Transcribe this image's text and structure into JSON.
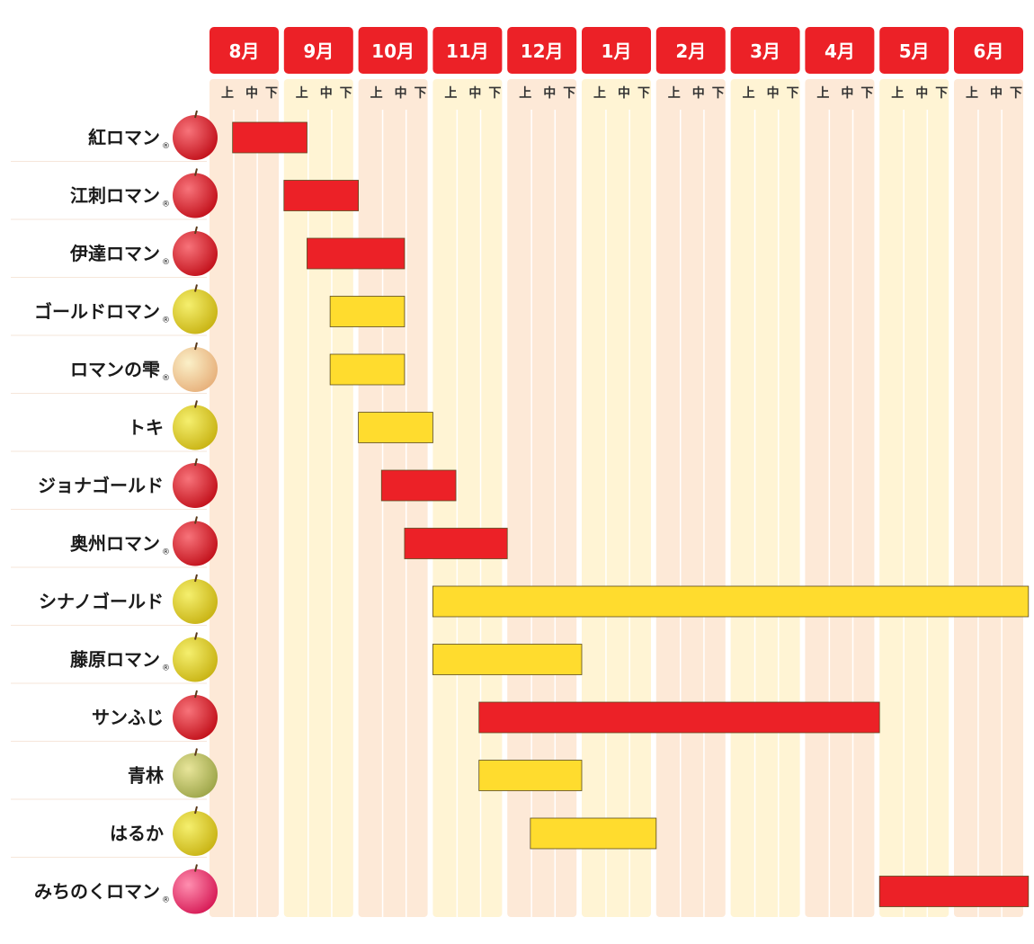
{
  "chart_data": {
    "type": "gantt",
    "months": [
      "8月",
      "9月",
      "10月",
      "11月",
      "12月",
      "1月",
      "2月",
      "3月",
      "4月",
      "5月",
      "6月"
    ],
    "periods": [
      "上",
      "中",
      "下"
    ],
    "colors": {
      "red": "#ec2127",
      "yellow": "#ffdc2e",
      "column_odd": "#fde9d7",
      "column_even": "#fff4d4",
      "month_header": "#ec2127"
    },
    "varieties": [
      {
        "name": "紅ロマン",
        "registered": true,
        "apple": "red",
        "color": "red",
        "start": [
          0,
          1
        ],
        "end": [
          1,
          0
        ]
      },
      {
        "name": "江刺ロマン",
        "registered": true,
        "apple": "red",
        "color": "red",
        "start": [
          1,
          0
        ],
        "end": [
          1,
          2
        ]
      },
      {
        "name": "伊達ロマン",
        "registered": true,
        "apple": "red",
        "color": "red",
        "start": [
          1,
          1
        ],
        "end": [
          2,
          1
        ]
      },
      {
        "name": "ゴールドロマン",
        "registered": true,
        "apple": "yellow",
        "color": "yellow",
        "start": [
          1,
          2
        ],
        "end": [
          2,
          1
        ]
      },
      {
        "name": "ロマンの雫",
        "registered": true,
        "apple": "blush",
        "color": "yellow",
        "start": [
          1,
          2
        ],
        "end": [
          2,
          1
        ]
      },
      {
        "name": "トキ",
        "registered": false,
        "apple": "yellow",
        "color": "yellow",
        "start": [
          2,
          0
        ],
        "end": [
          2,
          2
        ]
      },
      {
        "name": "ジョナゴールド",
        "registered": false,
        "apple": "red",
        "color": "red",
        "start": [
          2,
          1
        ],
        "end": [
          3,
          0
        ]
      },
      {
        "name": "奥州ロマン",
        "registered": true,
        "apple": "red",
        "color": "red",
        "start": [
          2,
          2
        ],
        "end": [
          3,
          2
        ]
      },
      {
        "name": "シナノゴールド",
        "registered": false,
        "apple": "yellow",
        "color": "yellow",
        "start": [
          3,
          0
        ],
        "end": [
          10,
          2
        ]
      },
      {
        "name": "藤原ロマン",
        "registered": true,
        "apple": "yellow",
        "color": "yellow",
        "start": [
          3,
          0
        ],
        "end": [
          4,
          2
        ]
      },
      {
        "name": "サンふじ",
        "registered": false,
        "apple": "red",
        "color": "red",
        "start": [
          3,
          2
        ],
        "end": [
          8,
          2
        ]
      },
      {
        "name": "青林",
        "registered": false,
        "apple": "green",
        "color": "yellow",
        "start": [
          3,
          2
        ],
        "end": [
          4,
          2
        ]
      },
      {
        "name": "はるか",
        "registered": false,
        "apple": "yellow",
        "color": "yellow",
        "start": [
          4,
          1
        ],
        "end": [
          5,
          2
        ]
      },
      {
        "name": "みちのくロマン",
        "registered": true,
        "apple": "pink",
        "color": "red",
        "start": [
          9,
          0
        ],
        "end": [
          10,
          2
        ]
      }
    ]
  }
}
